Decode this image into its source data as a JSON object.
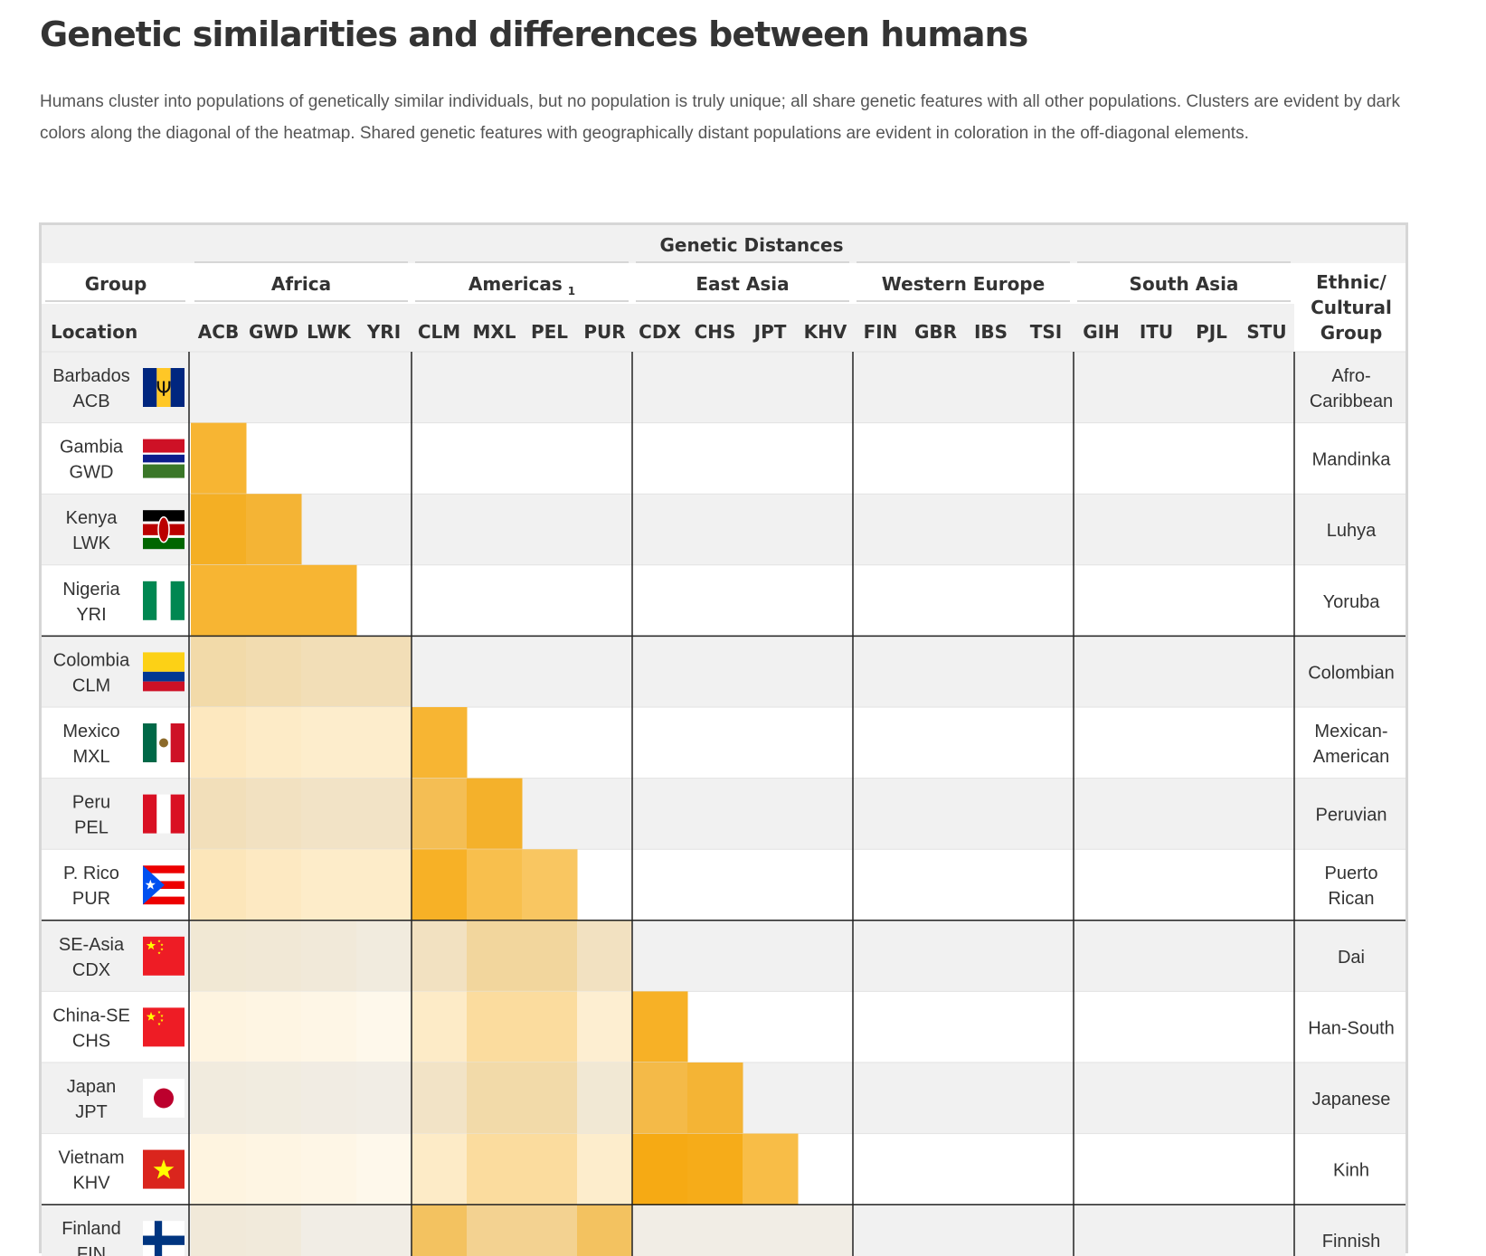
{
  "title": "Genetic similarities and differences between humans",
  "subtitle": "Humans cluster into populations of genetically similar individuals, but no population is truly unique; all share genetic features with all other populations. Clusters are evident by dark colors along the diagonal of the heatmap. Shared genetic features with geographically distant populations are evident in coloration in the off-diagonal elements.",
  "colors": {
    "heat": "#f5a300",
    "row_band": "#f1f1f1",
    "header_bg": "#f1f1f1",
    "divider": "#222222",
    "rule": "#d6d6d6"
  },
  "chart_data": {
    "type": "heatmap",
    "super_header": "Genetic Distances",
    "header_group": "Group",
    "header_location": "Location",
    "header_ethnic": [
      "Ethnic/",
      "Cultural",
      "Group"
    ],
    "region_groups": [
      {
        "name": "Africa",
        "sup": "",
        "codes": [
          "ACB",
          "GWD",
          "LWK",
          "YRI"
        ]
      },
      {
        "name": "Americas",
        "sup": "1",
        "codes": [
          "CLM",
          "MXL",
          "PEL",
          "PUR"
        ]
      },
      {
        "name": "East Asia",
        "sup": "",
        "codes": [
          "CDX",
          "CHS",
          "JPT",
          "KHV"
        ]
      },
      {
        "name": "Western Europe",
        "sup": "",
        "codes": [
          "FIN",
          "GBR",
          "IBS",
          "TSI"
        ]
      },
      {
        "name": "South Asia",
        "sup": "",
        "codes": [
          "GIH",
          "ITU",
          "PJL",
          "STU"
        ]
      }
    ],
    "rows": [
      {
        "location": "Barbados",
        "code": "ACB",
        "flag": "barbados-flag-icon",
        "ethnic": [
          "Afro-",
          "Caribbean"
        ],
        "values": []
      },
      {
        "location": "Gambia",
        "code": "GWD",
        "flag": "gambia-flag-icon",
        "ethnic": [
          "Mandinka"
        ],
        "values": [
          0.8
        ]
      },
      {
        "location": "Kenya",
        "code": "LWK",
        "flag": "kenya-flag-icon",
        "ethnic": [
          "Luhya"
        ],
        "values": [
          0.85,
          0.78
        ]
      },
      {
        "location": "Nigeria",
        "code": "YRI",
        "flag": "nigeria-flag-icon",
        "ethnic": [
          "Yoruba"
        ],
        "values": [
          0.8,
          0.8,
          0.8
        ]
      },
      {
        "location": "Colombia",
        "code": "CLM",
        "flag": "colombia-flag-icon",
        "ethnic": [
          "Colombian"
        ],
        "values": [
          0.3,
          0.27,
          0.24,
          0.24
        ]
      },
      {
        "location": "Mexico",
        "code": "MXL",
        "flag": "mexico-flag-icon",
        "ethnic": [
          "Mexican-",
          "American"
        ],
        "values": [
          0.25,
          0.22,
          0.2,
          0.2,
          0.8
        ]
      },
      {
        "location": "Peru",
        "code": "PEL",
        "flag": "peru-flag-icon",
        "ethnic": [
          "Peruvian"
        ],
        "values": [
          0.23,
          0.2,
          0.18,
          0.18,
          0.65,
          0.82
        ]
      },
      {
        "location": "P. Rico",
        "code": "PUR",
        "flag": "puerto-rico-flag-icon",
        "ethnic": [
          "Puerto",
          "Rican"
        ],
        "values": [
          0.27,
          0.24,
          0.21,
          0.21,
          0.85,
          0.7,
          0.62
        ]
      },
      {
        "location": "SE-Asia",
        "code": "CDX",
        "flag": "china-flag-icon",
        "ethnic": [
          "Dai"
        ],
        "values": [
          0.12,
          0.11,
          0.1,
          0.08,
          0.2,
          0.35,
          0.35,
          0.2
        ]
      },
      {
        "location": "China-SE",
        "code": "CHS",
        "flag": "china-flag-icon",
        "ethnic": [
          "Han-South"
        ],
        "values": [
          0.12,
          0.11,
          0.1,
          0.08,
          0.22,
          0.38,
          0.38,
          0.18,
          0.85
        ]
      },
      {
        "location": "Japan",
        "code": "JPT",
        "flag": "japan-flag-icon",
        "ethnic": [
          "Japanese"
        ],
        "values": [
          0.08,
          0.07,
          0.06,
          0.05,
          0.18,
          0.3,
          0.3,
          0.12,
          0.7,
          0.78
        ]
      },
      {
        "location": "Vietnam",
        "code": "KHV",
        "flag": "vietnam-flag-icon",
        "ethnic": [
          "Kinh"
        ],
        "values": [
          0.12,
          0.11,
          0.1,
          0.08,
          0.22,
          0.38,
          0.38,
          0.2,
          0.92,
          0.9,
          0.72
        ]
      },
      {
        "location": "Finland",
        "code": "FIN",
        "flag": "finland-flag-icon",
        "ethnic": [
          "Finnish"
        ],
        "values": [
          0.1,
          0.09,
          0.05,
          0.05,
          0.6,
          0.4,
          0.4,
          0.6,
          0.05,
          0.05,
          0.05,
          0.05
        ]
      }
    ]
  }
}
